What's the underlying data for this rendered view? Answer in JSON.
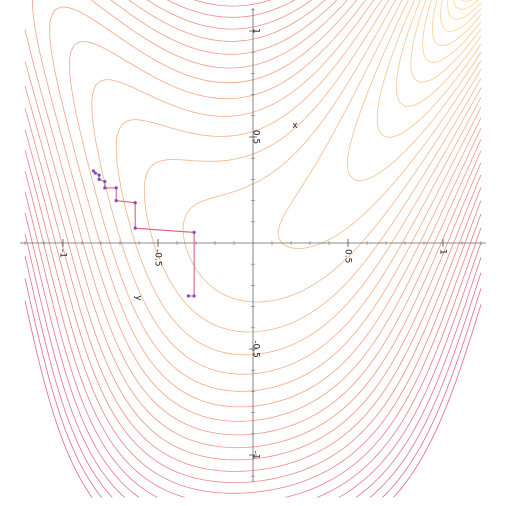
{
  "chart_data": {
    "type": "contour",
    "xlim": [
      -1.2,
      1.2
    ],
    "ylim": [
      -1.2,
      1.2
    ],
    "grid": false,
    "axis_labels": {
      "x": "x",
      "y": "y"
    },
    "x_ticks": [
      {
        "value": -1,
        "label": "-1"
      },
      {
        "value": -0.5,
        "label": "-0.5"
      },
      {
        "value": 0.5,
        "label": "0.5"
      },
      {
        "value": 1,
        "label": "1"
      }
    ],
    "y_ticks": [
      {
        "value": 1,
        "label": "1"
      },
      {
        "value": 0.5,
        "label": "0.5"
      },
      {
        "value": -0.5,
        "label": "-0.5"
      },
      {
        "value": -1,
        "label": "-1"
      }
    ],
    "contour_colors": {
      "low": "#ffe98a",
      "mid": "#f5a070",
      "high": "#e0407a"
    },
    "descent_path": {
      "line_color": "#e0607a",
      "point_color": "#7a4fc0",
      "points": [
        [
          -0.34,
          -0.25
        ],
        [
          -0.31,
          -0.25
        ],
        [
          -0.31,
          0.05
        ],
        [
          -0.62,
          0.07
        ],
        [
          -0.62,
          0.19
        ],
        [
          -0.72,
          0.2
        ],
        [
          -0.72,
          0.26
        ],
        [
          -0.78,
          0.26
        ],
        [
          -0.78,
          0.29
        ],
        [
          -0.81,
          0.3
        ],
        [
          -0.81,
          0.32
        ],
        [
          -0.83,
          0.33
        ],
        [
          -0.84,
          0.34
        ]
      ]
    }
  }
}
